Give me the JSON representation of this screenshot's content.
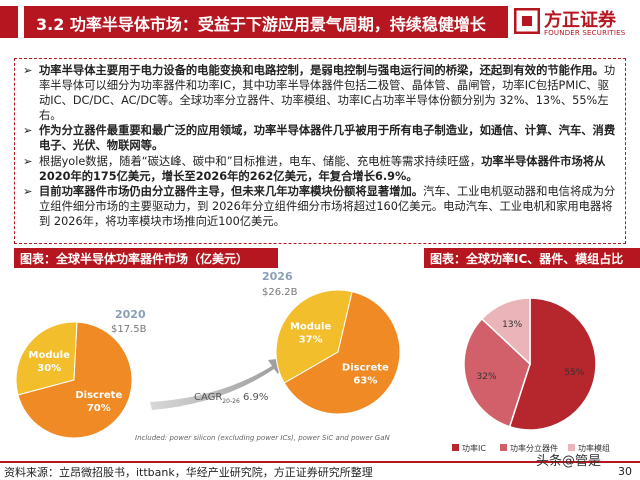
{
  "header": {
    "title": "3.2 功率半导体市场：受益于下游应用景气周期，持续稳健增长",
    "logo_cn": "方正证券",
    "logo_en": "FOUNDER SECURITIES",
    "accent_color": "#b5161f"
  },
  "bullets": [
    {
      "mark": "➢",
      "parts": [
        {
          "text": "功率半导体主要用于电力设备的电能变换和电路控制，是弱电控制与强电运行间的桥梁，还起到有效的节能作用。",
          "bold": true
        },
        {
          "text": "功率半导体可以细分为功率器件和功率IC，其中功率半导体器件包括二极管、晶体管、晶闸管，功率IC包括PMIC、驱动IC、DC/DC、AC/DC等。全球功率分立器件、功率模组、功率IC占功率半导体份额分别为 32%、13%、55%左右。",
          "bold": false
        }
      ]
    },
    {
      "mark": "➢",
      "parts": [
        {
          "text": "作为分立器件最重要和最广泛的应用领域，功率半导体器件几乎被用于所有电子制造业，如通信、计算、汽车、消费电子、光伏、物联网等。",
          "bold": true
        }
      ]
    },
    {
      "mark": "➢",
      "parts": [
        {
          "text": "根据yole数据，随着“碳达峰、碳中和”目标推进，电车、储能、充电桩等需求持续旺盛，",
          "bold": false
        },
        {
          "text": "功率半导体器件市场将从2020年的175亿美元，增长至2026年的262亿美元，年复合增长6.9%。",
          "bold": true
        }
      ]
    },
    {
      "mark": "➢",
      "parts": [
        {
          "text": "目前功率器件市场仍由分立器件主导，但未来几年功率模块份额将显著增加。",
          "bold": true
        },
        {
          "text": "汽车、工业电机驱动器和电信将成为分立组件细分市场的主要驱动力，到 2026年分立组件细分市场将超过160亿美元。电动汽车、工业电机和家用电器将到 2026年，将功率模块市场推向近100亿美元。",
          "bold": false
        }
      ]
    }
  ],
  "section_left_label": "图表：全球半导体功率器件市场（亿美元）",
  "section_right_label": "图表：全球功率IC、器件、模组占比",
  "chart_data": [
    {
      "type": "pie",
      "title": "2020",
      "subtitle": "$17.5B",
      "slices": [
        {
          "label": "Module",
          "value": 30,
          "value_label": "30%",
          "color": "#f2be2c"
        },
        {
          "label": "Discrete",
          "value": 70,
          "value_label": "70%",
          "color": "#ef8a25"
        }
      ]
    },
    {
      "type": "pie",
      "title": "2026",
      "subtitle": "$26.2B",
      "slices": [
        {
          "label": "Module",
          "value": 37,
          "value_label": "37%",
          "color": "#f2be2c"
        },
        {
          "label": "Discrete",
          "value": 63,
          "value_label": "63%",
          "color": "#ef8a25"
        }
      ]
    },
    {
      "type": "pie",
      "title": "",
      "slices": [
        {
          "label": "功率IC",
          "value": 55,
          "value_label": "55%",
          "color": "#b5272d"
        },
        {
          "label": "功率分立器件",
          "value": 32,
          "value_label": "32%",
          "color": "#d1606b"
        },
        {
          "label": "功率模组",
          "value": 13,
          "value_label": "13%",
          "color": "#eab4b8"
        }
      ],
      "legend_position": "bottom"
    }
  ],
  "cagr_label": "CAGR",
  "cagr_sub": "20-26",
  "cagr_value": "6.9%",
  "chart_note": "Included: power silicon (excluding power ICs), power SiC and power GaN",
  "footer": {
    "source": "资料来源：立昂微招股书，ittbank，华经产业研究院，方正证券研究所整理",
    "watermark": "头条@管是",
    "page": "30"
  }
}
